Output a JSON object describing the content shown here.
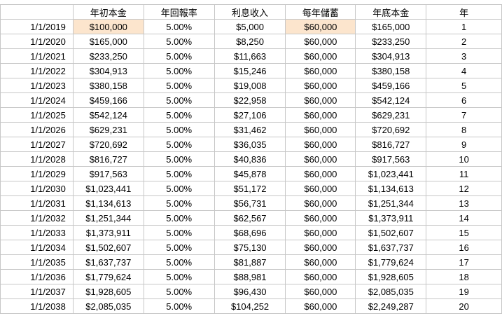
{
  "colors": {
    "highlight": "#fce5cd",
    "grid": "#c7c7c7"
  },
  "headers": [
    "",
    "年初本金",
    "年回報率",
    "利息收入",
    "每年儲蓄",
    "年底本金",
    "年"
  ],
  "rows": [
    [
      "1/1/2019",
      "$100,000",
      "5.00%",
      "$5,000",
      "$60,000",
      "$165,000",
      "1"
    ],
    [
      "1/1/2020",
      "$165,000",
      "5.00%",
      "$8,250",
      "$60,000",
      "$233,250",
      "2"
    ],
    [
      "1/1/2021",
      "$233,250",
      "5.00%",
      "$11,663",
      "$60,000",
      "$304,913",
      "3"
    ],
    [
      "1/1/2022",
      "$304,913",
      "5.00%",
      "$15,246",
      "$60,000",
      "$380,158",
      "4"
    ],
    [
      "1/1/2023",
      "$380,158",
      "5.00%",
      "$19,008",
      "$60,000",
      "$459,166",
      "5"
    ],
    [
      "1/1/2024",
      "$459,166",
      "5.00%",
      "$22,958",
      "$60,000",
      "$542,124",
      "6"
    ],
    [
      "1/1/2025",
      "$542,124",
      "5.00%",
      "$27,106",
      "$60,000",
      "$629,231",
      "7"
    ],
    [
      "1/1/2026",
      "$629,231",
      "5.00%",
      "$31,462",
      "$60,000",
      "$720,692",
      "8"
    ],
    [
      "1/1/2027",
      "$720,692",
      "5.00%",
      "$36,035",
      "$60,000",
      "$816,727",
      "9"
    ],
    [
      "1/1/2028",
      "$816,727",
      "5.00%",
      "$40,836",
      "$60,000",
      "$917,563",
      "10"
    ],
    [
      "1/1/2029",
      "$917,563",
      "5.00%",
      "$45,878",
      "$60,000",
      "$1,023,441",
      "11"
    ],
    [
      "1/1/2030",
      "$1,023,441",
      "5.00%",
      "$51,172",
      "$60,000",
      "$1,134,613",
      "12"
    ],
    [
      "1/1/2031",
      "$1,134,613",
      "5.00%",
      "$56,731",
      "$60,000",
      "$1,251,344",
      "13"
    ],
    [
      "1/1/2032",
      "$1,251,344",
      "5.00%",
      "$62,567",
      "$60,000",
      "$1,373,911",
      "14"
    ],
    [
      "1/1/2033",
      "$1,373,911",
      "5.00%",
      "$68,696",
      "$60,000",
      "$1,502,607",
      "15"
    ],
    [
      "1/1/2034",
      "$1,502,607",
      "5.00%",
      "$75,130",
      "$60,000",
      "$1,637,737",
      "16"
    ],
    [
      "1/1/2035",
      "$1,637,737",
      "5.00%",
      "$81,887",
      "$60,000",
      "$1,779,624",
      "17"
    ],
    [
      "1/1/2036",
      "$1,779,624",
      "5.00%",
      "$88,981",
      "$60,000",
      "$1,928,605",
      "18"
    ],
    [
      "1/1/2037",
      "$1,928,605",
      "5.00%",
      "$96,430",
      "$60,000",
      "$2,085,035",
      "19"
    ],
    [
      "1/1/2038",
      "$2,085,035",
      "5.00%",
      "$104,252",
      "$60,000",
      "$2,249,287",
      "20"
    ]
  ],
  "highlighted_cells": [
    {
      "row": 0,
      "col": 1
    },
    {
      "row": 0,
      "col": 4
    }
  ]
}
